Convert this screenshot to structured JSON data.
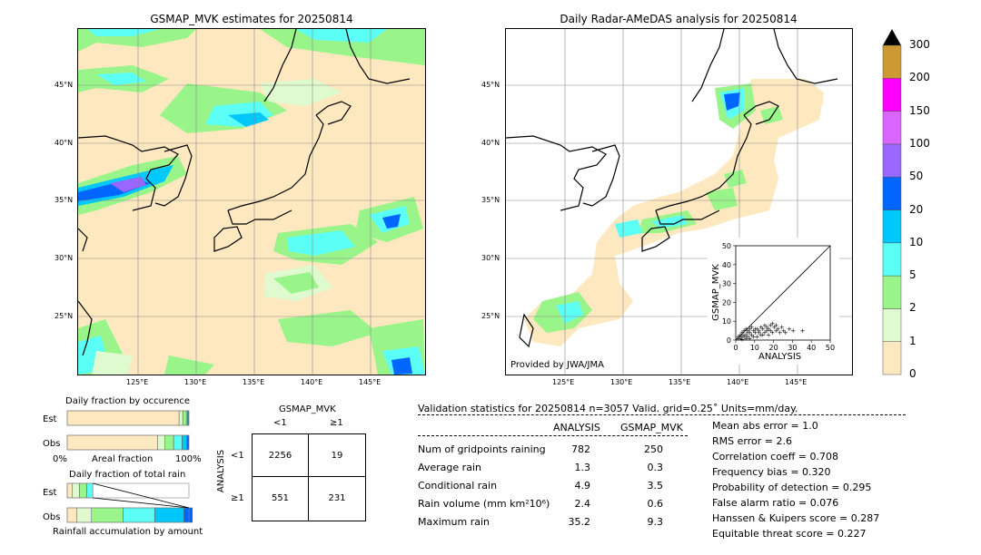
{
  "map_left": {
    "title": "GSMAP_MVK estimates for 20250814",
    "lat_labels": [
      "45°N",
      "40°N",
      "35°N",
      "30°N",
      "25°N"
    ],
    "lon_labels": [
      "125°E",
      "130°E",
      "135°E",
      "140°E",
      "145°E"
    ]
  },
  "map_right": {
    "title": "Daily Radar-AMeDAS analysis for 20250814",
    "lat_labels": [
      "45°N",
      "40°N",
      "35°N",
      "30°N",
      "25°N"
    ],
    "lon_labels": [
      "125°E",
      "130°E",
      "135°E",
      "140°E",
      "145°E"
    ],
    "provider": "Provided by JWA/JMA"
  },
  "colorbar": {
    "levels": [
      "0",
      "1",
      "2",
      "5",
      "10",
      "20",
      "50",
      "100",
      "150",
      "200",
      "300"
    ],
    "colors": [
      "#fde8bf",
      "#e0fad0",
      "#99f58a",
      "#5cfff5",
      "#00c8fa",
      "#0066ff",
      "#9966ff",
      "#d966ff",
      "#ff00ff",
      "#cc9933"
    ]
  },
  "chart_data": [
    {
      "type": "scatter",
      "xlabel": "ANALYSIS",
      "ylabel": "GSMAP_MVK",
      "xlim": [
        0,
        50
      ],
      "ylim": [
        0,
        50
      ],
      "xticks": [
        "0",
        "10",
        "20",
        "30",
        "40",
        "50"
      ],
      "yticks": [
        "0",
        "10",
        "20",
        "30",
        "40",
        "50"
      ],
      "points": [
        [
          1,
          1
        ],
        [
          2,
          1
        ],
        [
          3,
          2
        ],
        [
          4,
          2
        ],
        [
          5,
          3
        ],
        [
          6,
          2
        ],
        [
          7,
          4
        ],
        [
          8,
          3
        ],
        [
          9,
          5
        ],
        [
          10,
          4
        ],
        [
          11,
          6
        ],
        [
          12,
          5
        ],
        [
          13,
          7
        ],
        [
          14,
          6
        ],
        [
          15,
          8
        ],
        [
          16,
          7
        ],
        [
          17,
          6
        ],
        [
          18,
          8
        ],
        [
          19,
          9
        ],
        [
          20,
          7
        ],
        [
          21,
          8
        ],
        [
          22,
          6
        ],
        [
          25,
          5
        ],
        [
          28,
          6
        ],
        [
          30,
          5
        ],
        [
          35,
          5
        ],
        [
          2,
          3
        ],
        [
          3,
          4
        ],
        [
          4,
          5
        ],
        [
          5,
          6
        ],
        [
          6,
          5
        ],
        [
          7,
          6
        ],
        [
          8,
          7
        ],
        [
          3,
          0.5
        ],
        [
          5,
          1
        ],
        [
          7,
          1
        ],
        [
          9,
          2
        ],
        [
          11,
          2
        ],
        [
          13,
          3
        ],
        [
          15,
          4
        ],
        [
          17,
          3
        ],
        [
          19,
          4
        ],
        [
          21,
          5
        ],
        [
          23,
          4
        ],
        [
          24,
          7
        ],
        [
          26,
          4
        ],
        [
          1,
          2
        ],
        [
          2,
          2
        ],
        [
          4,
          3
        ],
        [
          6,
          4
        ],
        [
          10,
          6
        ],
        [
          12,
          4
        ],
        [
          14,
          3
        ],
        [
          16,
          5
        ],
        [
          18,
          5
        ]
      ]
    },
    {
      "type": "bar",
      "title": "Daily fraction by occurence",
      "categories": [
        "Est",
        "Obs"
      ],
      "xlabel": "Areal fraction",
      "x_tick_left": "0%",
      "x_tick_right": "100%",
      "series": [
        {
          "values": [
            0.919,
            0.744
          ]
        },
        {
          "values": [
            0.03,
            0.06
          ]
        },
        {
          "values": [
            0.03,
            0.07
          ]
        },
        {
          "values": [
            0.01,
            0.07
          ]
        },
        {
          "values": [
            0.008,
            0.04
          ]
        },
        {
          "values": [
            0.003,
            0.016
          ]
        }
      ]
    },
    {
      "type": "bar",
      "title": "Daily fraction of total rain",
      "categories": [
        "Est",
        "Obs"
      ],
      "xlabel": "Rainfall accumulation by amount",
      "series": [
        {
          "values": [
            0.04,
            0.08
          ]
        },
        {
          "values": [
            0.06,
            0.12
          ]
        },
        {
          "values": [
            0.06,
            0.26
          ]
        },
        {
          "values": [
            0.05,
            0.26
          ]
        },
        {
          "values": [
            0.0,
            0.24
          ]
        },
        {
          "values": [
            0.0,
            0.1
          ]
        }
      ]
    }
  ],
  "contingency": {
    "col_title": "GSMAP_MVK",
    "row_title": "ANALYSIS",
    "col_labels": [
      "<1",
      "≥1"
    ],
    "row_labels": [
      "<1",
      "≥1"
    ],
    "cells": [
      [
        "2256",
        "19"
      ],
      [
        "551",
        "231"
      ]
    ]
  },
  "validation": {
    "header": "Validation statistics for 20250814  n=3057 Valid. grid=0.25˚ Units=mm/day.",
    "col_analysis": "ANALYSIS",
    "col_gsmap": "GSMAP_MVK",
    "rows": [
      {
        "label": "Num of gridpoints raining",
        "analysis": "782",
        "gsmap": "250"
      },
      {
        "label": "Average rain",
        "analysis": "1.3",
        "gsmap": "0.3"
      },
      {
        "label": "Conditional rain",
        "analysis": "4.9",
        "gsmap": "3.5"
      },
      {
        "label": "Rain volume (mm km²10⁶)",
        "analysis": "2.4",
        "gsmap": "0.6"
      },
      {
        "label": "Maximum rain",
        "analysis": "35.2",
        "gsmap": "9.3"
      }
    ],
    "scores": [
      "Mean abs error =    1.0",
      "RMS error =    2.6",
      "Correlation coeff =  0.708",
      "Frequency bias =  0.320",
      "Probability of detection =  0.295",
      "False alarm ratio =  0.076",
      "Hanssen & Kuipers score =  0.287",
      "Equitable threat score =  0.227"
    ]
  }
}
